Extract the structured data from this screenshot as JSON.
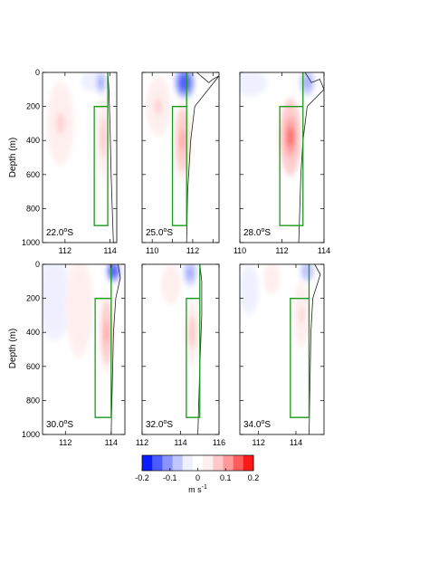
{
  "figure": {
    "ylabel": "Depth (m)",
    "colorbar": {
      "unit_main": "m s",
      "unit_exp": "-1",
      "ticks": [
        "-0.2",
        "-0.1",
        "0",
        "0.1",
        "0.2"
      ],
      "range": [
        -0.2,
        0.2
      ],
      "colors": [
        "#0a1dff",
        "#4b5bff",
        "#8a93ff",
        "#c0c6ff",
        "#eef0ff",
        "#ffffff",
        "#ffeeee",
        "#ffc9c9",
        "#ff9a9a",
        "#ff5c5c",
        "#ff1a1a"
      ]
    }
  },
  "chart_data": [
    {
      "type": "heatmap",
      "label_main": "22.0",
      "label_unit": "S",
      "xlim": [
        111,
        114.3
      ],
      "xticks": [
        112,
        114
      ],
      "xticklabels": [
        "112",
        "114"
      ],
      "ylim": [
        1000,
        0
      ],
      "yticks": [
        0,
        200,
        400,
        600,
        800,
        1000
      ],
      "yticklabels": [
        "0",
        "200",
        "400",
        "600",
        "800",
        "1000"
      ],
      "box": {
        "x": [
          113.3,
          113.9
        ],
        "y": [
          200,
          900
        ]
      },
      "shelf_line": [
        [
          113.9,
          0
        ],
        [
          113.95,
          100
        ],
        [
          114.0,
          300
        ],
        [
          114.05,
          600
        ],
        [
          114.1,
          800
        ],
        [
          114.15,
          1000
        ]
      ],
      "blobs": [
        {
          "cx": 111.8,
          "cy": 300,
          "rx": 0.6,
          "ry": 250,
          "v": 0.06
        },
        {
          "cx": 113.2,
          "cy": 50,
          "rx": 0.5,
          "ry": 60,
          "v": -0.06
        },
        {
          "cx": 113.6,
          "cy": 60,
          "rx": 0.25,
          "ry": 80,
          "v": -0.12
        },
        {
          "cx": 113.7,
          "cy": 380,
          "rx": 0.25,
          "ry": 250,
          "v": 0.08
        }
      ]
    },
    {
      "type": "heatmap",
      "label_main": "25.0",
      "label_unit": "S",
      "xlim": [
        109.5,
        113.3
      ],
      "xticks": [
        110,
        111,
        112,
        113
      ],
      "xticklabels": [
        "110",
        "",
        "112",
        ""
      ],
      "ylim": [
        1000,
        0
      ],
      "yticks": [
        0,
        200,
        400,
        600,
        800,
        1000
      ],
      "yticklabels": [],
      "box": {
        "x": [
          111.0,
          111.7
        ],
        "y": [
          200,
          900
        ]
      },
      "shelf_line": [
        [
          112.2,
          0
        ],
        [
          112.4,
          20
        ],
        [
          112.8,
          60
        ],
        [
          113.0,
          40
        ],
        [
          113.3,
          20
        ],
        [
          112.1,
          200
        ],
        [
          111.9,
          400
        ],
        [
          111.75,
          700
        ],
        [
          111.7,
          1000
        ]
      ],
      "blobs": [
        {
          "cx": 110.3,
          "cy": 200,
          "rx": 0.6,
          "ry": 180,
          "v": 0.06
        },
        {
          "cx": 111.6,
          "cy": 60,
          "rx": 0.5,
          "ry": 100,
          "v": -0.18
        },
        {
          "cx": 111.5,
          "cy": 400,
          "rx": 0.4,
          "ry": 250,
          "v": 0.1
        }
      ]
    },
    {
      "type": "heatmap",
      "label_main": "28.0",
      "label_unit": "S",
      "xlim": [
        110,
        114
      ],
      "xticks": [
        110,
        112,
        114
      ],
      "xticklabels": [
        "110",
        "112",
        "114"
      ],
      "ylim": [
        1000,
        0
      ],
      "yticks": [
        0,
        200,
        400,
        600,
        800,
        1000
      ],
      "yticklabels": [],
      "box": {
        "x": [
          111.9,
          113.0
        ],
        "y": [
          200,
          900
        ]
      },
      "shelf_line": [
        [
          113.1,
          0
        ],
        [
          113.4,
          60
        ],
        [
          113.8,
          40
        ],
        [
          114.0,
          100
        ],
        [
          113.2,
          200
        ],
        [
          113.0,
          400
        ],
        [
          112.9,
          600
        ],
        [
          112.8,
          1000
        ]
      ],
      "blobs": [
        {
          "cx": 110.5,
          "cy": 60,
          "rx": 0.8,
          "ry": 80,
          "v": -0.05
        },
        {
          "cx": 112.4,
          "cy": 380,
          "rx": 0.5,
          "ry": 230,
          "v": 0.14
        },
        {
          "cx": 113.2,
          "cy": 60,
          "rx": 0.4,
          "ry": 90,
          "v": -0.12
        }
      ]
    },
    {
      "type": "heatmap",
      "label_main": "30.0",
      "label_unit": "S",
      "xlim": [
        111,
        114.6
      ],
      "xticks": [
        112,
        114
      ],
      "xticklabels": [
        "112",
        "114"
      ],
      "ylim": [
        1000,
        0
      ],
      "yticks": [
        0,
        200,
        400,
        600,
        800,
        1000
      ],
      "yticklabels": [
        "0",
        "200",
        "400",
        "600",
        "800",
        "1000"
      ],
      "box": {
        "x": [
          113.3,
          114.0
        ],
        "y": [
          200,
          900
        ]
      },
      "shelf_line": [
        [
          114.3,
          0
        ],
        [
          114.4,
          80
        ],
        [
          114.2,
          200
        ],
        [
          114.1,
          400
        ],
        [
          114.05,
          700
        ],
        [
          114.0,
          1000
        ]
      ],
      "blobs": [
        {
          "cx": 111.5,
          "cy": 200,
          "rx": 0.8,
          "ry": 250,
          "v": -0.06
        },
        {
          "cx": 112.6,
          "cy": 250,
          "rx": 0.6,
          "ry": 300,
          "v": 0.05
        },
        {
          "cx": 113.8,
          "cy": 400,
          "rx": 0.3,
          "ry": 250,
          "v": 0.1
        },
        {
          "cx": 114.1,
          "cy": 40,
          "rx": 0.3,
          "ry": 70,
          "v": -0.18
        }
      ]
    },
    {
      "type": "heatmap",
      "label_main": "32.0",
      "label_unit": "S",
      "xlim": [
        112,
        116
      ],
      "xticks": [
        112,
        114,
        116
      ],
      "xticklabels": [
        "112",
        "114",
        "116"
      ],
      "ylim": [
        1000,
        0
      ],
      "yticks": [
        0,
        200,
        400,
        600,
        800,
        1000
      ],
      "yticklabels": [],
      "box": {
        "x": [
          114.3,
          115.0
        ],
        "y": [
          200,
          900
        ]
      },
      "shelf_line": [
        [
          115.0,
          0
        ],
        [
          115.1,
          100
        ],
        [
          115.1,
          300
        ],
        [
          115.0,
          600
        ],
        [
          114.95,
          800
        ],
        [
          114.9,
          1000
        ]
      ],
      "blobs": [
        {
          "cx": 113.5,
          "cy": 120,
          "rx": 0.5,
          "ry": 120,
          "v": 0.05
        },
        {
          "cx": 114.5,
          "cy": 50,
          "rx": 0.4,
          "ry": 90,
          "v": -0.12
        },
        {
          "cx": 114.6,
          "cy": 400,
          "rx": 0.35,
          "ry": 200,
          "v": 0.08
        }
      ]
    },
    {
      "type": "heatmap",
      "label_main": "34.0",
      "label_unit": "S",
      "xlim": [
        111,
        115.5
      ],
      "xticks": [
        112,
        114
      ],
      "xticklabels": [
        "112",
        "114"
      ],
      "ylim": [
        1000,
        0
      ],
      "yticks": [
        0,
        200,
        400,
        600,
        800,
        1000
      ],
      "yticklabels": [],
      "box": {
        "x": [
          113.7,
          114.7
        ],
        "y": [
          200,
          900
        ]
      },
      "shelf_line": [
        [
          115.0,
          0
        ],
        [
          115.3,
          60
        ],
        [
          114.9,
          200
        ],
        [
          114.8,
          400
        ],
        [
          114.75,
          700
        ],
        [
          114.7,
          1000
        ]
      ],
      "blobs": [
        {
          "cx": 111.5,
          "cy": 150,
          "rx": 0.5,
          "ry": 150,
          "v": -0.05
        },
        {
          "cx": 112.7,
          "cy": 80,
          "rx": 0.4,
          "ry": 100,
          "v": 0.05
        },
        {
          "cx": 114.3,
          "cy": 300,
          "rx": 0.4,
          "ry": 200,
          "v": 0.06
        },
        {
          "cx": 114.6,
          "cy": 40,
          "rx": 0.4,
          "ry": 70,
          "v": -0.1
        }
      ]
    }
  ]
}
